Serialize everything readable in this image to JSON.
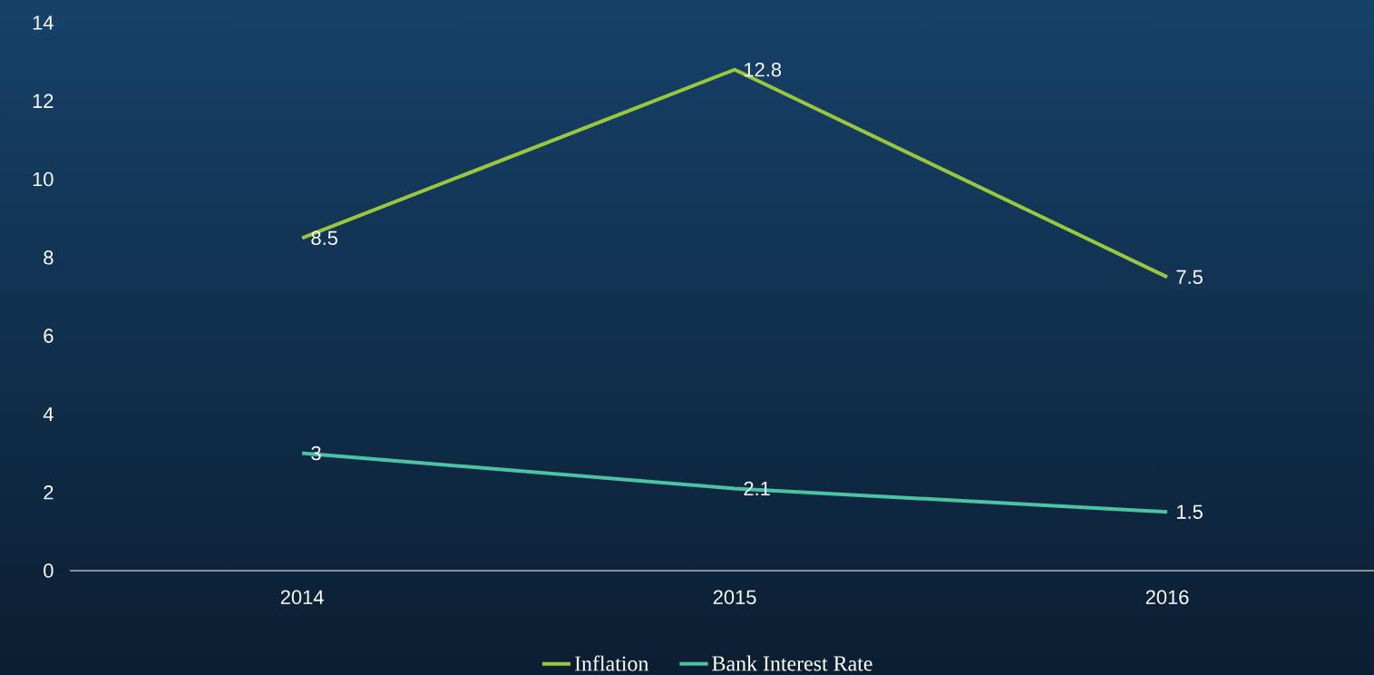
{
  "chart_data": {
    "type": "line",
    "categories": [
      "2014",
      "2015",
      "2016"
    ],
    "series": [
      {
        "name": "Inflation",
        "color": "#9bc73c",
        "values": [
          8.5,
          12.8,
          7.5
        ]
      },
      {
        "name": "Bank Interest Rate",
        "color": "#4cc4a4",
        "values": [
          3,
          2.1,
          1.5
        ]
      }
    ],
    "ylim": [
      0,
      14
    ],
    "yticks": [
      0,
      2,
      4,
      6,
      8,
      10,
      12,
      14
    ],
    "grid": false,
    "legend": "bottom",
    "marker": "none",
    "line_style": "solid",
    "data_labels": true
  }
}
